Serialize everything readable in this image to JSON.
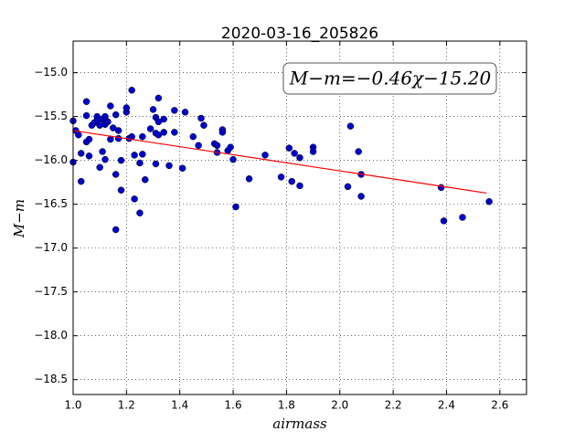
{
  "chart_data": {
    "type": "scatter",
    "title": "2020-03-16_205826",
    "x_label": "airmass",
    "y_label": "M−m",
    "annotation": "M−m=−0.46χ−15.20",
    "xlim": [
      1.0,
      2.7
    ],
    "ylim": [
      -18.67,
      -14.64
    ],
    "xticks": [
      {
        "value": 1.0,
        "label": "1.0"
      },
      {
        "value": 1.2,
        "label": "1.2"
      },
      {
        "value": 1.4,
        "label": "1.4"
      },
      {
        "value": 1.6,
        "label": "1.6"
      },
      {
        "value": 1.8,
        "label": "1.8"
      },
      {
        "value": 2.0,
        "label": "2.0"
      },
      {
        "value": 2.2,
        "label": "2.2"
      },
      {
        "value": 2.4,
        "label": "2.4"
      },
      {
        "value": 2.6,
        "label": "2.6"
      }
    ],
    "yticks": [
      {
        "value": -15.0,
        "label": "−15.0"
      },
      {
        "value": -15.5,
        "label": "−15.5"
      },
      {
        "value": -16.0,
        "label": "−16.0"
      },
      {
        "value": -16.5,
        "label": "−16.5"
      },
      {
        "value": -17.0,
        "label": "−17.0"
      },
      {
        "value": -17.5,
        "label": "−17.5"
      },
      {
        "value": -18.0,
        "label": "−18.0"
      },
      {
        "value": -18.5,
        "label": "−18.5"
      }
    ],
    "grid": true,
    "series": [
      {
        "type": "scatter",
        "color": "#0000cc",
        "x": [
          1.0,
          1.01,
          1.0,
          1.02,
          1.03,
          1.03,
          1.05,
          1.05,
          1.05,
          1.06,
          1.06,
          1.07,
          1.08,
          1.09,
          1.09,
          1.1,
          1.1,
          1.11,
          1.11,
          1.12,
          1.12,
          1.12,
          1.13,
          1.14,
          1.14,
          1.15,
          1.16,
          1.16,
          1.16,
          1.17,
          1.17,
          1.18,
          1.18,
          1.2,
          1.2,
          1.21,
          1.22,
          1.22,
          1.23,
          1.23,
          1.25,
          1.25,
          1.26,
          1.26,
          1.27,
          1.29,
          1.3,
          1.31,
          1.31,
          1.31,
          1.32,
          1.32,
          1.32,
          1.34,
          1.34,
          1.36,
          1.38,
          1.38,
          1.41,
          1.42,
          1.45,
          1.47,
          1.48,
          1.49,
          1.53,
          1.54,
          1.54,
          1.56,
          1.56,
          1.58,
          1.59,
          1.6,
          1.61,
          1.66,
          1.72,
          1.78,
          1.81,
          1.82,
          1.83,
          1.85,
          1.85,
          1.9,
          1.9,
          2.03,
          2.04,
          2.07,
          2.08,
          2.08,
          2.38,
          2.39,
          2.46,
          2.56
        ],
        "values": [
          -15.55,
          -15.66,
          -16.02,
          -15.71,
          -15.92,
          -16.24,
          -15.33,
          -15.49,
          -15.79,
          -15.76,
          -15.95,
          -15.6,
          -15.57,
          -15.5,
          -15.54,
          -15.6,
          -16.08,
          -15.9,
          -15.53,
          -15.59,
          -15.5,
          -15.99,
          -15.56,
          -15.38,
          -15.76,
          -15.63,
          -16.79,
          -16.16,
          -15.48,
          -15.66,
          -15.75,
          -16.0,
          -16.34,
          -15.45,
          -15.4,
          -15.75,
          -15.2,
          -15.73,
          -16.44,
          -15.94,
          -16.6,
          -16.03,
          -15.93,
          -15.73,
          -16.22,
          -15.64,
          -15.42,
          -15.51,
          -15.69,
          -16.04,
          -15.29,
          -15.56,
          -15.71,
          -15.53,
          -15.68,
          -16.06,
          -15.68,
          -15.43,
          -16.09,
          -15.45,
          -15.73,
          -15.83,
          -15.52,
          -15.6,
          -15.81,
          -15.91,
          -15.83,
          -15.65,
          -15.68,
          -15.89,
          -15.85,
          -15.99,
          -16.53,
          -16.21,
          -15.94,
          -16.19,
          -15.86,
          -16.24,
          -15.92,
          -15.97,
          -16.29,
          -15.85,
          -15.9,
          -16.3,
          -15.61,
          -15.9,
          -16.16,
          -16.41,
          -16.31,
          -16.69,
          -16.65,
          -16.47
        ]
      },
      {
        "type": "line",
        "color": "#ff0000",
        "x": [
          1.0,
          2.55
        ],
        "values": [
          -15.66,
          -16.373
        ]
      }
    ]
  }
}
